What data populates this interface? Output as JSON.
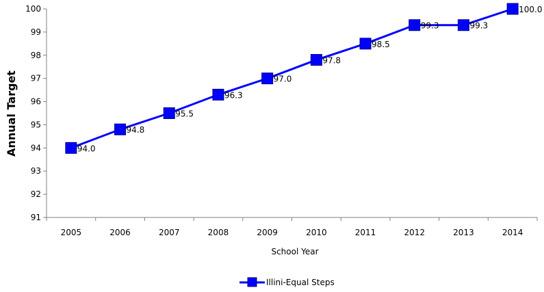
{
  "chart_data": {
    "type": "line",
    "categories": [
      "2005",
      "2006",
      "2007",
      "2008",
      "2009",
      "2010",
      "2011",
      "2012",
      "2013",
      "2014"
    ],
    "series": [
      {
        "name": "Illini-Equal Steps",
        "values": [
          94.0,
          94.8,
          95.5,
          96.3,
          97.0,
          97.8,
          98.5,
          99.3,
          99.3,
          100.0
        ],
        "labels": [
          "94.0",
          "94.8",
          "95.5",
          "96.3",
          "97.0",
          "97.8",
          "98.5",
          "99.3",
          "99.3",
          "100.0"
        ],
        "color": "#0000ff",
        "marker": "square"
      }
    ],
    "xlabel": "School Year",
    "ylabel": "Annual Target",
    "ylim": [
      91,
      100
    ],
    "yticks": [
      "91",
      "92",
      "93",
      "94",
      "95",
      "96",
      "97",
      "98",
      "99",
      "100"
    ],
    "grid": false,
    "legend_position": "bottom",
    "colors": {
      "series": "#0000ff",
      "axis": "#808080",
      "background": "#ffffff"
    }
  }
}
